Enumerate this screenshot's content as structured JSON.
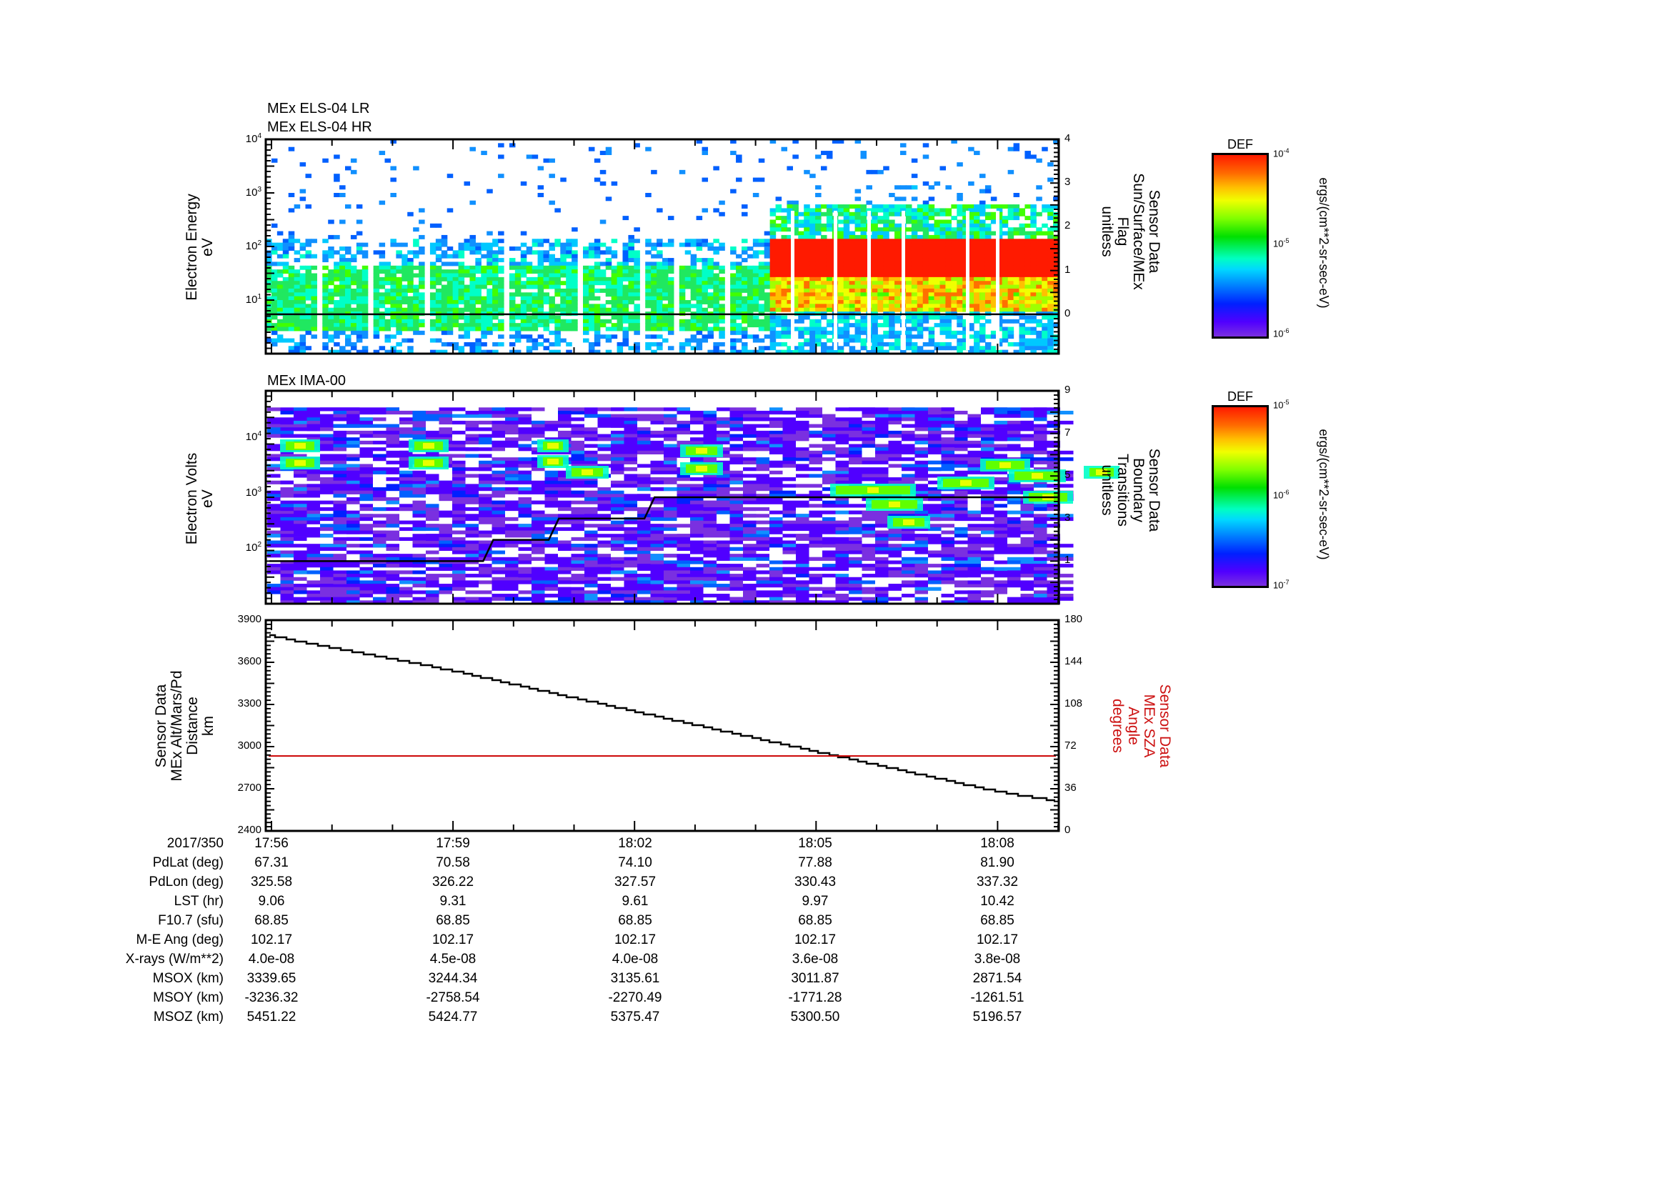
{
  "chart_data": [
    {
      "type": "heatmap",
      "panel": "electron-spectrogram",
      "titles": [
        "MEx ELS-04 LR",
        "MEx ELS-04 HR"
      ],
      "ylabel": [
        "Electron Energy",
        "eV"
      ],
      "yscale": "log",
      "ylim": [
        1,
        10000
      ],
      "yticks": [
        {
          "exp": "4",
          "v": 10000
        },
        {
          "exp": "3",
          "v": 1000
        },
        {
          "exp": "2",
          "v": 100
        },
        {
          "exp": "1",
          "v": 10
        }
      ],
      "y2label": [
        "Sensor Data",
        "Sun/Surface/MEx",
        "Flag",
        "unitless"
      ],
      "y2lim": [
        -0.9,
        4
      ],
      "y2ticks": [
        "4",
        "3",
        "2",
        "1",
        "0"
      ],
      "overlay_line": {
        "name": "Sun/Surface/MEx Flag",
        "color": "#000000",
        "value": 0
      },
      "description": "Electrons at ~5-50 eV (green/yellow) throughout; intense red DEF band ~20-150 eV from ~18:03:15 to end",
      "colorbar": {
        "title": "DEF",
        "min_label": "10",
        "min_exp": "-6",
        "mid_label": "10",
        "mid_exp": "-5",
        "max_label": "10",
        "max_exp": "-4",
        "units": "ergs/(cm**2-sr-sec-eV)"
      }
    },
    {
      "type": "heatmap",
      "panel": "ion-spectrogram",
      "titles": [
        "MEx IMA-00"
      ],
      "ylabel": [
        "Electron Volts",
        "eV"
      ],
      "yscale": "log",
      "ylim": [
        10,
        70000
      ],
      "yticks": [
        {
          "exp": "4",
          "v": 10000
        },
        {
          "exp": "3",
          "v": 1000
        },
        {
          "exp": "2",
          "v": 100
        }
      ],
      "y2label": [
        "Sensor Data",
        "Boundary",
        "Transitions",
        "unitless"
      ],
      "y2lim": [
        -1,
        9
      ],
      "y2ticks": [
        "9",
        "7",
        "5",
        "3",
        "1"
      ],
      "overlay_line": {
        "name": "Boundary Transitions",
        "color": "#000000",
        "steps": [
          {
            "t": "17:55:58",
            "v": 1
          },
          {
            "t": "17:59:30",
            "v": 1
          },
          {
            "t": "17:59:40",
            "v": 2
          },
          {
            "t": "18:00:35",
            "v": 2
          },
          {
            "t": "18:00:45",
            "v": 3
          },
          {
            "t": "18:02:10",
            "v": 3
          },
          {
            "t": "18:02:20",
            "v": 4
          },
          {
            "t": "18:09:01",
            "v": 4
          }
        ]
      },
      "description": "Mostly low-level (purple/blue) background; enhanced ion fluxes ~1-3 keV near 17:56, 17:58:30, 18:02 and 18:05-18:07",
      "colorbar": {
        "title": "DEF",
        "min_label": "10",
        "min_exp": "-7",
        "mid_label": "10",
        "mid_exp": "-6",
        "max_label": "10",
        "max_exp": "-5",
        "units": "ergs/(cm**2-sr-sec-eV)"
      }
    },
    {
      "type": "line",
      "panel": "altitude-sza",
      "ylabel": [
        "Sensor Data",
        "MEx Alt/Mars/Pd",
        "Distance",
        "km"
      ],
      "ylim": [
        2400,
        3900
      ],
      "yticks": [
        "3900",
        "3600",
        "3300",
        "3000",
        "2700",
        "2400"
      ],
      "y2label": [
        "Sensor Data",
        "MEx SZA",
        "Angle",
        "degrees"
      ],
      "y2lim": [
        0,
        180
      ],
      "y2ticks": [
        "180",
        "144",
        "108",
        "72",
        "36",
        "0"
      ],
      "series": [
        {
          "name": "MEx Alt/Mars/Pd Distance (km)",
          "color": "#000000",
          "axis": "left",
          "x": [
            "17:55:58",
            "17:56",
            "17:59",
            "18:02",
            "18:05",
            "18:08",
            "18:09:01"
          ],
          "values": [
            3790,
            3787,
            3540,
            3250,
            2965,
            2680,
            2610
          ]
        },
        {
          "name": "MEx SZA Angle (degrees)",
          "color": "#cc0000",
          "axis": "right",
          "x": [
            "17:55:58",
            "18:09:01"
          ],
          "values": [
            64,
            64
          ]
        }
      ]
    }
  ],
  "xaxis": {
    "date": "2017/350",
    "ticks": [
      "17:56",
      "17:59",
      "18:02",
      "18:05",
      "18:08"
    ]
  },
  "ephemeris": {
    "rows": [
      {
        "label": "PdLat (deg)",
        "values": [
          "67.31",
          "70.58",
          "74.10",
          "77.88",
          "81.90"
        ]
      },
      {
        "label": "PdLon (deg)",
        "values": [
          "325.58",
          "326.22",
          "327.57",
          "330.43",
          "337.32"
        ]
      },
      {
        "label": "LST (hr)",
        "values": [
          "9.06",
          "9.31",
          "9.61",
          "9.97",
          "10.42"
        ]
      },
      {
        "label": "F10.7 (sfu)",
        "values": [
          "68.85",
          "68.85",
          "68.85",
          "68.85",
          "68.85"
        ]
      },
      {
        "label": "M-E Ang (deg)",
        "values": [
          "102.17",
          "102.17",
          "102.17",
          "102.17",
          "102.17"
        ]
      },
      {
        "label": "X-rays (W/m**2)",
        "values": [
          "4.0e-08",
          "4.5e-08",
          "4.0e-08",
          "3.6e-08",
          "3.8e-08"
        ]
      },
      {
        "label": "MSOX (km)",
        "values": [
          "3339.65",
          "3244.34",
          "3135.61",
          "3011.87",
          "2871.54"
        ]
      },
      {
        "label": "MSOY (km)",
        "values": [
          "-3236.32",
          "-2758.54",
          "-2270.49",
          "-1771.28",
          "-1261.51"
        ]
      },
      {
        "label": "MSOZ (km)",
        "values": [
          "5451.22",
          "5424.77",
          "5375.47",
          "5300.50",
          "5196.57"
        ]
      }
    ]
  }
}
